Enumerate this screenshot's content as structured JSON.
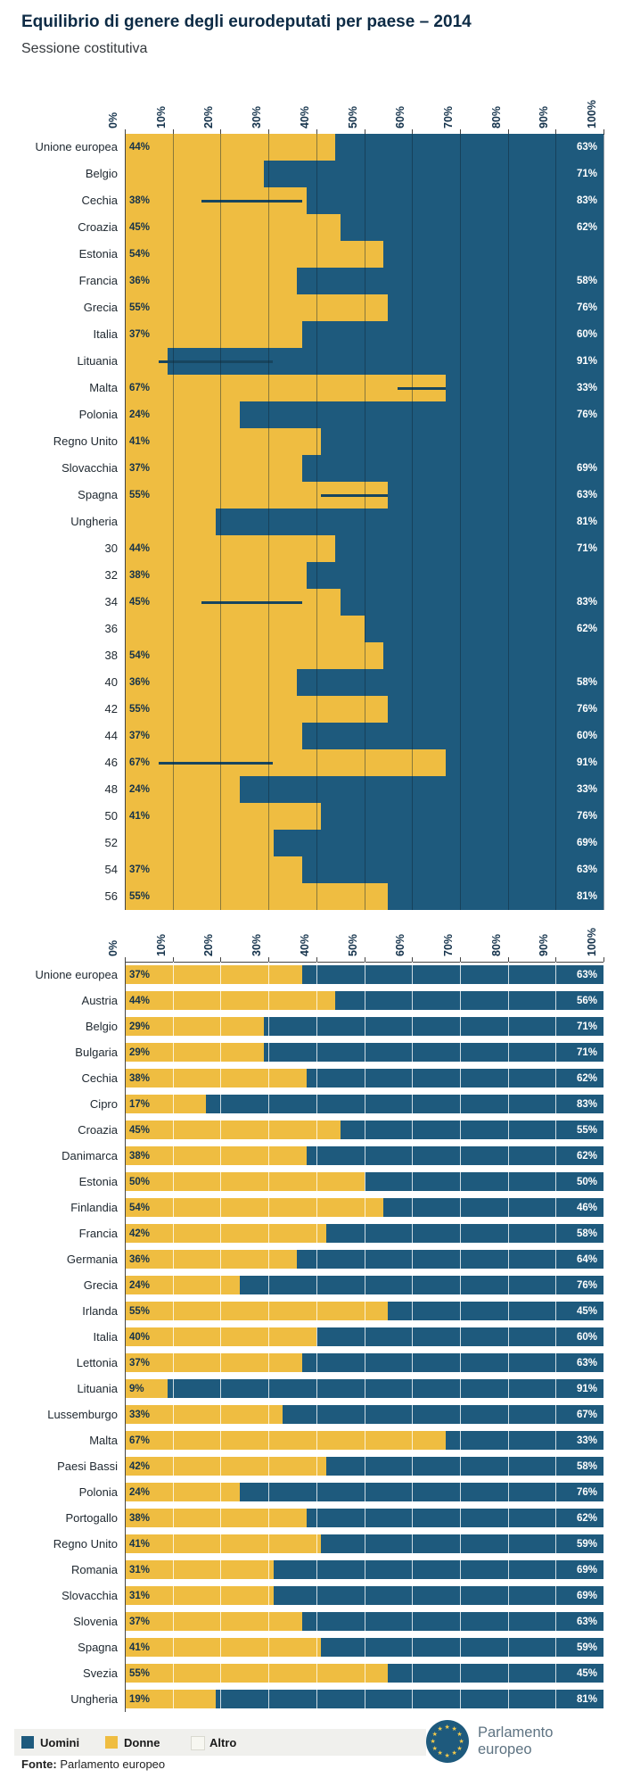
{
  "title": "Equilibrio di genere degli eurodeputati per paese – 2014",
  "subtitle": "Sessione costitutiva",
  "x_ticks": [
    "0%",
    "10%",
    "20%",
    "30%",
    "40%",
    "50%",
    "60%",
    "70%",
    "80%",
    "90%",
    "100%"
  ],
  "colors": {
    "uomini": "#1e5a7d",
    "donne": "#efbd41",
    "altro": "#f7f7f1",
    "grid_top": "rgba(15,35,52,0.45)",
    "grid_bottom": "rgba(255,255,255,0.78)",
    "axis": "#444444",
    "band": "#f0f0ed",
    "artifact": "#17455f"
  },
  "chart_data": [
    {
      "type": "bar",
      "orientation": "horizontal",
      "stacked": true,
      "xlim": [
        0,
        100
      ],
      "legend_position": "bottom",
      "series_names": [
        "Donne",
        "Uomini"
      ],
      "rows": [
        {
          "label": "Unione europea",
          "donne": 44,
          "left_label": "44%",
          "right_label": "63%",
          "artifact": null
        },
        {
          "label": "Belgio",
          "donne": 29,
          "left_label": null,
          "right_label": "71%",
          "artifact": null
        },
        {
          "label": "Cechia",
          "donne": 38,
          "left_label": "38%",
          "right_label": "83%",
          "artifact": [
            16,
            37
          ]
        },
        {
          "label": "Croazia",
          "donne": 45,
          "left_label": "45%",
          "right_label": "62%",
          "artifact": null
        },
        {
          "label": "Estonia",
          "donne": 54,
          "left_label": "54%",
          "right_label": null,
          "artifact": null
        },
        {
          "label": "Francia",
          "donne": 36,
          "left_label": "36%",
          "right_label": "58%",
          "artifact": null
        },
        {
          "label": "Grecia",
          "donne": 55,
          "left_label": "55%",
          "right_label": "76%",
          "artifact": null
        },
        {
          "label": "Italia",
          "donne": 37,
          "left_label": "37%",
          "right_label": "60%",
          "artifact": null
        },
        {
          "label": "Lituania",
          "donne": 9,
          "left_label": null,
          "right_label": "91%",
          "artifact": [
            7,
            31
          ]
        },
        {
          "label": "Malta",
          "donne": 67,
          "left_label": "67%",
          "right_label": "33%",
          "artifact": [
            57,
            67
          ]
        },
        {
          "label": "Polonia",
          "donne": 24,
          "left_label": "24%",
          "right_label": "76%",
          "artifact": null
        },
        {
          "label": "Regno Unito",
          "donne": 41,
          "left_label": "41%",
          "right_label": null,
          "artifact": null
        },
        {
          "label": "Slovacchia",
          "donne": 37,
          "left_label": "37%",
          "right_label": "69%",
          "artifact": null
        },
        {
          "label": "Spagna",
          "donne": 55,
          "left_label": "55%",
          "right_label": "63%",
          "artifact": [
            41,
            55
          ]
        },
        {
          "label": "Ungheria",
          "donne": 19,
          "left_label": null,
          "right_label": "81%",
          "artifact": null
        },
        {
          "label": "30",
          "donne": 44,
          "left_label": "44%",
          "right_label": "71%",
          "artifact": null
        },
        {
          "label": "32",
          "donne": 38,
          "left_label": "38%",
          "right_label": null,
          "artifact": null
        },
        {
          "label": "34",
          "donne": 45,
          "left_label": "45%",
          "right_label": "83%",
          "artifact": [
            16,
            37
          ]
        },
        {
          "label": "36",
          "donne": 50,
          "left_label": null,
          "right_label": "62%",
          "artifact": null
        },
        {
          "label": "38",
          "donne": 54,
          "left_label": "54%",
          "right_label": null,
          "artifact": null
        },
        {
          "label": "40",
          "donne": 36,
          "left_label": "36%",
          "right_label": "58%",
          "artifact": null
        },
        {
          "label": "42",
          "donne": 55,
          "left_label": "55%",
          "right_label": "76%",
          "artifact": null
        },
        {
          "label": "44",
          "donne": 37,
          "left_label": "37%",
          "right_label": "60%",
          "artifact": null
        },
        {
          "label": "46",
          "donne": 67,
          "left_label": "67%",
          "right_label": "91%",
          "artifact": [
            7,
            31
          ]
        },
        {
          "label": "48",
          "donne": 24,
          "left_label": "24%",
          "right_label": "33%",
          "artifact": null
        },
        {
          "label": "50",
          "donne": 41,
          "left_label": "41%",
          "right_label": "76%",
          "artifact": null
        },
        {
          "label": "52",
          "donne": 31,
          "left_label": null,
          "right_label": "69%",
          "artifact": null
        },
        {
          "label": "54",
          "donne": 37,
          "left_label": "37%",
          "right_label": "63%",
          "artifact": null
        },
        {
          "label": "56",
          "donne": 55,
          "left_label": "55%",
          "right_label": "81%",
          "artifact": null
        }
      ]
    },
    {
      "type": "bar",
      "orientation": "horizontal",
      "stacked": true,
      "xlim": [
        0,
        100
      ],
      "legend_position": "bottom",
      "series_names": [
        "Donne",
        "Uomini"
      ],
      "rows": [
        {
          "label": "Unione europea",
          "donne": 37,
          "uomini": 63,
          "donne_label": "37%",
          "uomini_label": "63%"
        },
        {
          "label": "Austria",
          "donne": 44,
          "uomini": 56,
          "donne_label": "44%",
          "uomini_label": "56%"
        },
        {
          "label": "Belgio",
          "donne": 29,
          "uomini": 71,
          "donne_label": "29%",
          "uomini_label": "71%"
        },
        {
          "label": "Bulgaria",
          "donne": 29,
          "uomini": 71,
          "donne_label": "29%",
          "uomini_label": "71%"
        },
        {
          "label": "Cechia",
          "donne": 38,
          "uomini": 62,
          "donne_label": "38%",
          "uomini_label": "62%"
        },
        {
          "label": "Cipro",
          "donne": 17,
          "uomini": 83,
          "donne_label": "17%",
          "uomini_label": "83%"
        },
        {
          "label": "Croazia",
          "donne": 45,
          "uomini": 55,
          "donne_label": "45%",
          "uomini_label": "55%"
        },
        {
          "label": "Danimarca",
          "donne": 38,
          "uomini": 62,
          "donne_label": "38%",
          "uomini_label": "62%"
        },
        {
          "label": "Estonia",
          "donne": 50,
          "uomini": 50,
          "donne_label": "50%",
          "uomini_label": "50%"
        },
        {
          "label": "Finlandia",
          "donne": 54,
          "uomini": 46,
          "donne_label": "54%",
          "uomini_label": "46%"
        },
        {
          "label": "Francia",
          "donne": 42,
          "uomini": 58,
          "donne_label": "42%",
          "uomini_label": "58%"
        },
        {
          "label": "Germania",
          "donne": 36,
          "uomini": 64,
          "donne_label": "36%",
          "uomini_label": "64%"
        },
        {
          "label": "Grecia",
          "donne": 24,
          "uomini": 76,
          "donne_label": "24%",
          "uomini_label": "76%"
        },
        {
          "label": "Irlanda",
          "donne": 55,
          "uomini": 45,
          "donne_label": "55%",
          "uomini_label": "45%"
        },
        {
          "label": "Italia",
          "donne": 40,
          "uomini": 60,
          "donne_label": "40%",
          "uomini_label": "60%"
        },
        {
          "label": "Lettonia",
          "donne": 37,
          "uomini": 63,
          "donne_label": "37%",
          "uomini_label": "63%"
        },
        {
          "label": "Lituania",
          "donne": 9,
          "uomini": 91,
          "donne_label": "9%",
          "uomini_label": "91%"
        },
        {
          "label": "Lussemburgo",
          "donne": 33,
          "uomini": 67,
          "donne_label": "33%",
          "uomini_label": "67%"
        },
        {
          "label": "Malta",
          "donne": 67,
          "uomini": 33,
          "donne_label": "67%",
          "uomini_label": "33%"
        },
        {
          "label": "Paesi Bassi",
          "donne": 42,
          "uomini": 58,
          "donne_label": "42%",
          "uomini_label": "58%"
        },
        {
          "label": "Polonia",
          "donne": 24,
          "uomini": 76,
          "donne_label": "24%",
          "uomini_label": "76%"
        },
        {
          "label": "Portogallo",
          "donne": 38,
          "uomini": 62,
          "donne_label": "38%",
          "uomini_label": "62%"
        },
        {
          "label": "Regno Unito",
          "donne": 41,
          "uomini": 59,
          "donne_label": "41%",
          "uomini_label": "59%"
        },
        {
          "label": "Romania",
          "donne": 31,
          "uomini": 69,
          "donne_label": "31%",
          "uomini_label": "69%"
        },
        {
          "label": "Slovacchia",
          "donne": 31,
          "uomini": 69,
          "donne_label": "31%",
          "uomini_label": "69%"
        },
        {
          "label": "Slovenia",
          "donne": 37,
          "uomini": 63,
          "donne_label": "37%",
          "uomini_label": "63%"
        },
        {
          "label": "Spagna",
          "donne": 41,
          "uomini": 59,
          "donne_label": "41%",
          "uomini_label": "59%"
        },
        {
          "label": "Svezia",
          "donne": 55,
          "uomini": 45,
          "donne_label": "55%",
          "uomini_label": "45%"
        },
        {
          "label": "Ungheria",
          "donne": 19,
          "uomini": 81,
          "donne_label": "19%",
          "uomini_label": "81%"
        }
      ]
    }
  ],
  "legend": [
    {
      "label": "Uomini",
      "color": "#1e5a7d",
      "border": null
    },
    {
      "label": "Donne",
      "color": "#efbd41",
      "border": null
    },
    {
      "label": "Altro",
      "color": "#f7f7f1",
      "border": "#d9d9d0"
    }
  ],
  "logo": {
    "line1": "Parlamento",
    "line2": "europeo"
  },
  "footer": {
    "source_label": "Fonte:",
    "source_value": " Parlamento europeo"
  }
}
